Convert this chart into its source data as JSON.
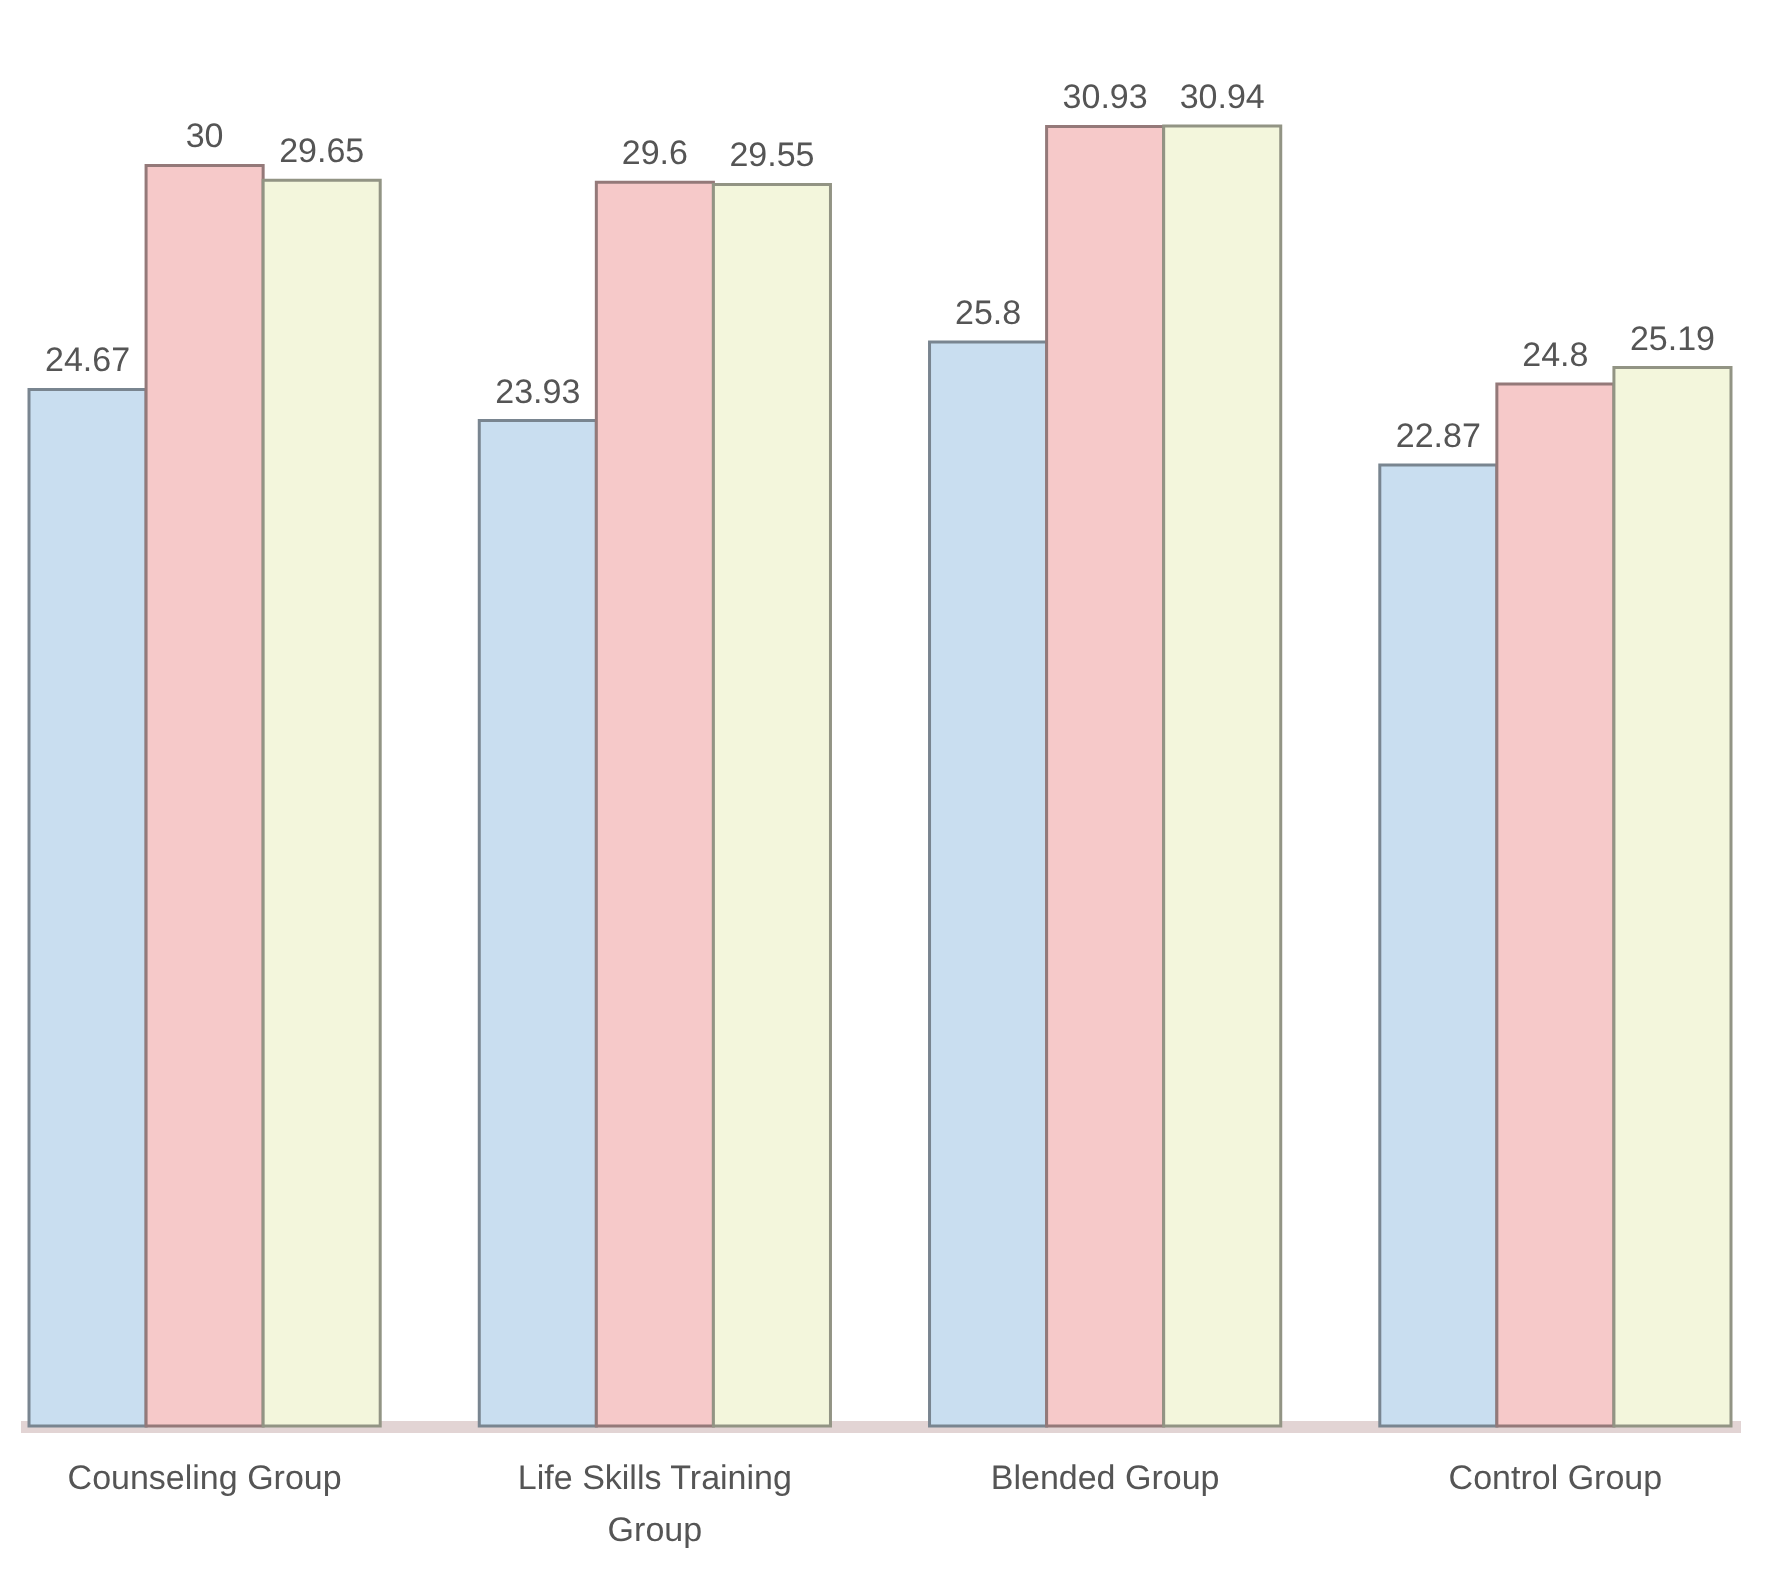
{
  "chart_data": {
    "type": "bar",
    "categories": [
      "Counseling Group",
      "Life Skills Training Group",
      "Blended Group",
      "Control Group"
    ],
    "series": [
      {
        "color": "#c9def0",
        "values": [
          24.67,
          23.93,
          25.8,
          22.87
        ]
      },
      {
        "color": "#f6c9c9",
        "values": [
          30,
          29.6,
          30.93,
          24.8
        ]
      },
      {
        "color": "#f3f6dc",
        "values": [
          29.65,
          29.55,
          30.94,
          25.19
        ]
      }
    ],
    "data_labels": true,
    "legend": false,
    "grid": false
  }
}
